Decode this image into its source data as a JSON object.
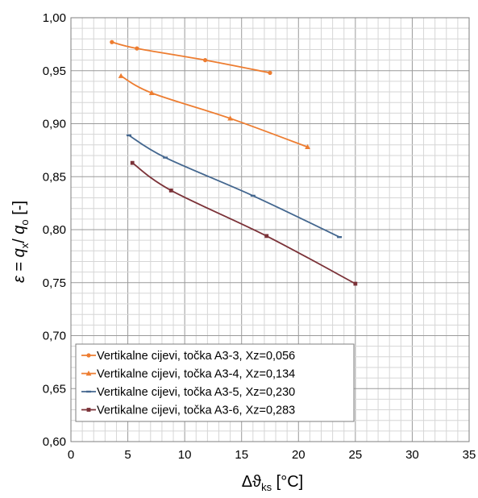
{
  "chart_data": {
    "type": "line",
    "title": "",
    "xlabel": {
      "prefix": "Δϑ",
      "sub": "ks",
      "suffix": " [°C]"
    },
    "ylabel": {
      "eps": "ε",
      "eq1": " = ",
      "q1": "q",
      "sub1": "x",
      "slash": "/ ",
      "q2": "q",
      "sub2": "o",
      "unit": " [-]"
    },
    "xlim": [
      0,
      35
    ],
    "ylim": [
      0.6,
      1.0
    ],
    "x_ticks": [
      0,
      5,
      10,
      15,
      20,
      25,
      30,
      35
    ],
    "x_tick_labels": [
      "0",
      "5",
      "10",
      "15",
      "20",
      "25",
      "30",
      "35"
    ],
    "y_ticks": [
      0.6,
      0.65,
      0.7,
      0.75,
      0.8,
      0.85,
      0.9,
      0.95,
      1.0
    ],
    "y_tick_labels": [
      "0,60",
      "0,65",
      "0,70",
      "0,75",
      "0,80",
      "0,85",
      "0,90",
      "0,95",
      "1,00"
    ],
    "grid": true,
    "minor_grid": true,
    "legend_position": "bottom-left",
    "series": [
      {
        "name": "Vertikalne cijevi, točka A3-3, Xz=0,056",
        "color": "#ED7D31",
        "marker": "circle",
        "points": [
          [
            3.6,
            0.977
          ],
          [
            5.8,
            0.971
          ],
          [
            11.8,
            0.96
          ],
          [
            17.5,
            0.948
          ]
        ]
      },
      {
        "name": "Vertikalne cijevi, točka A3-4, Xz=0,134",
        "color": "#ED7D31",
        "marker": "triangle",
        "points": [
          [
            4.4,
            0.945
          ],
          [
            7.1,
            0.929
          ],
          [
            14.0,
            0.905
          ],
          [
            20.8,
            0.878
          ]
        ]
      },
      {
        "name": "Vertikalne cijevi, točka A3-5, Xz=0,230",
        "color": "#44678F",
        "marker": "dash",
        "points": [
          [
            5.1,
            0.889
          ],
          [
            8.3,
            0.868
          ],
          [
            16.0,
            0.832
          ],
          [
            23.6,
            0.793
          ]
        ]
      },
      {
        "name": "Vertikalne cijevi, točka A3-6, Xz=0,283",
        "color": "#7B3238",
        "marker": "square",
        "points": [
          [
            5.4,
            0.863
          ],
          [
            8.8,
            0.837
          ],
          [
            17.2,
            0.794
          ],
          [
            25.0,
            0.749
          ]
        ]
      }
    ]
  }
}
